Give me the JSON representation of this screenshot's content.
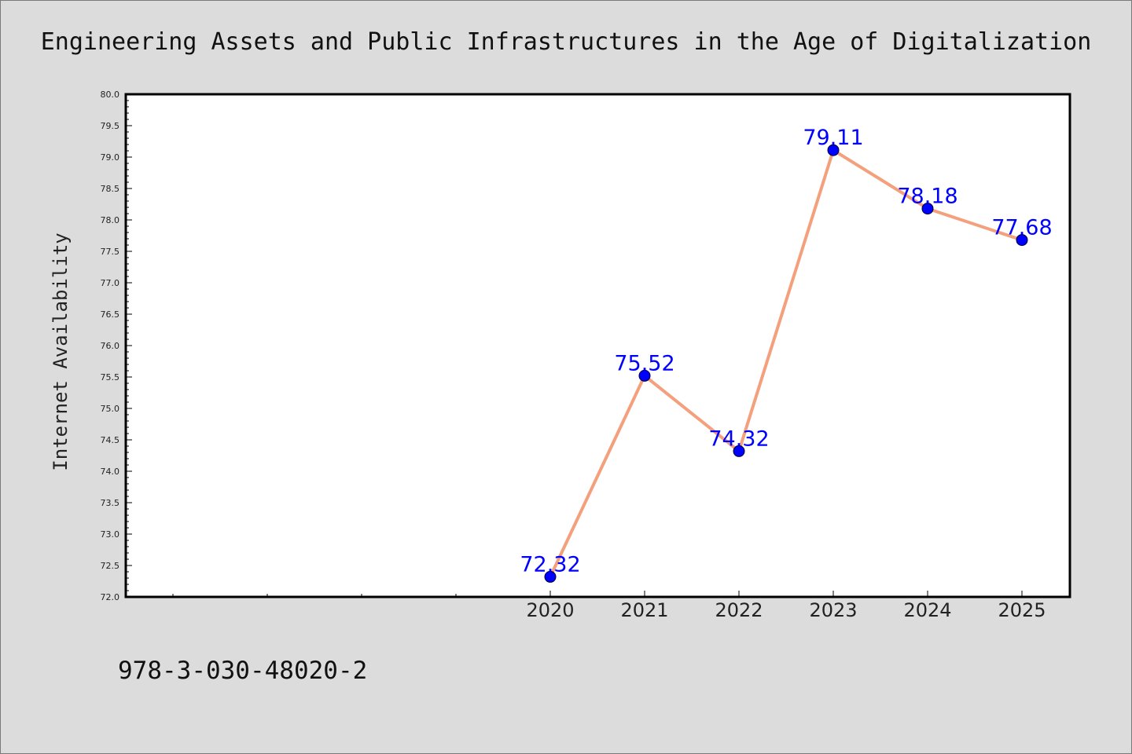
{
  "chart_data": {
    "type": "line",
    "title": "Engineering Assets and Public Infrastructures in the Age of Digitalization",
    "xlabel": "",
    "ylabel": "Internet Availability",
    "categories": [
      "2020",
      "2021",
      "2022",
      "2023",
      "2024",
      "2025"
    ],
    "series": [
      {
        "values": [
          72.32,
          75.52,
          74.32,
          79.11,
          78.18,
          77.68
        ],
        "labels": [
          "72.32",
          "75.52",
          "74.32",
          "79.11",
          "78.18",
          "77.68"
        ]
      }
    ],
    "ylim": [
      72.0,
      80.0
    ],
    "yticks": [
      "72.0",
      "72.5",
      "73.0",
      "73.5",
      "74.0",
      "74.5",
      "75.0",
      "75.5",
      "76.0",
      "76.5",
      "77.0",
      "77.5",
      "78.0",
      "78.5",
      "79.0",
      "79.5",
      "80.0"
    ],
    "grid": false,
    "line_color": "#f4a07c",
    "marker_color": "#0000ff",
    "label_color": "#0000ff",
    "background_color": "#dcdcdc",
    "plot_background_color": "#ffffff"
  },
  "footer": {
    "isbn": "978-3-030-48020-2"
  }
}
